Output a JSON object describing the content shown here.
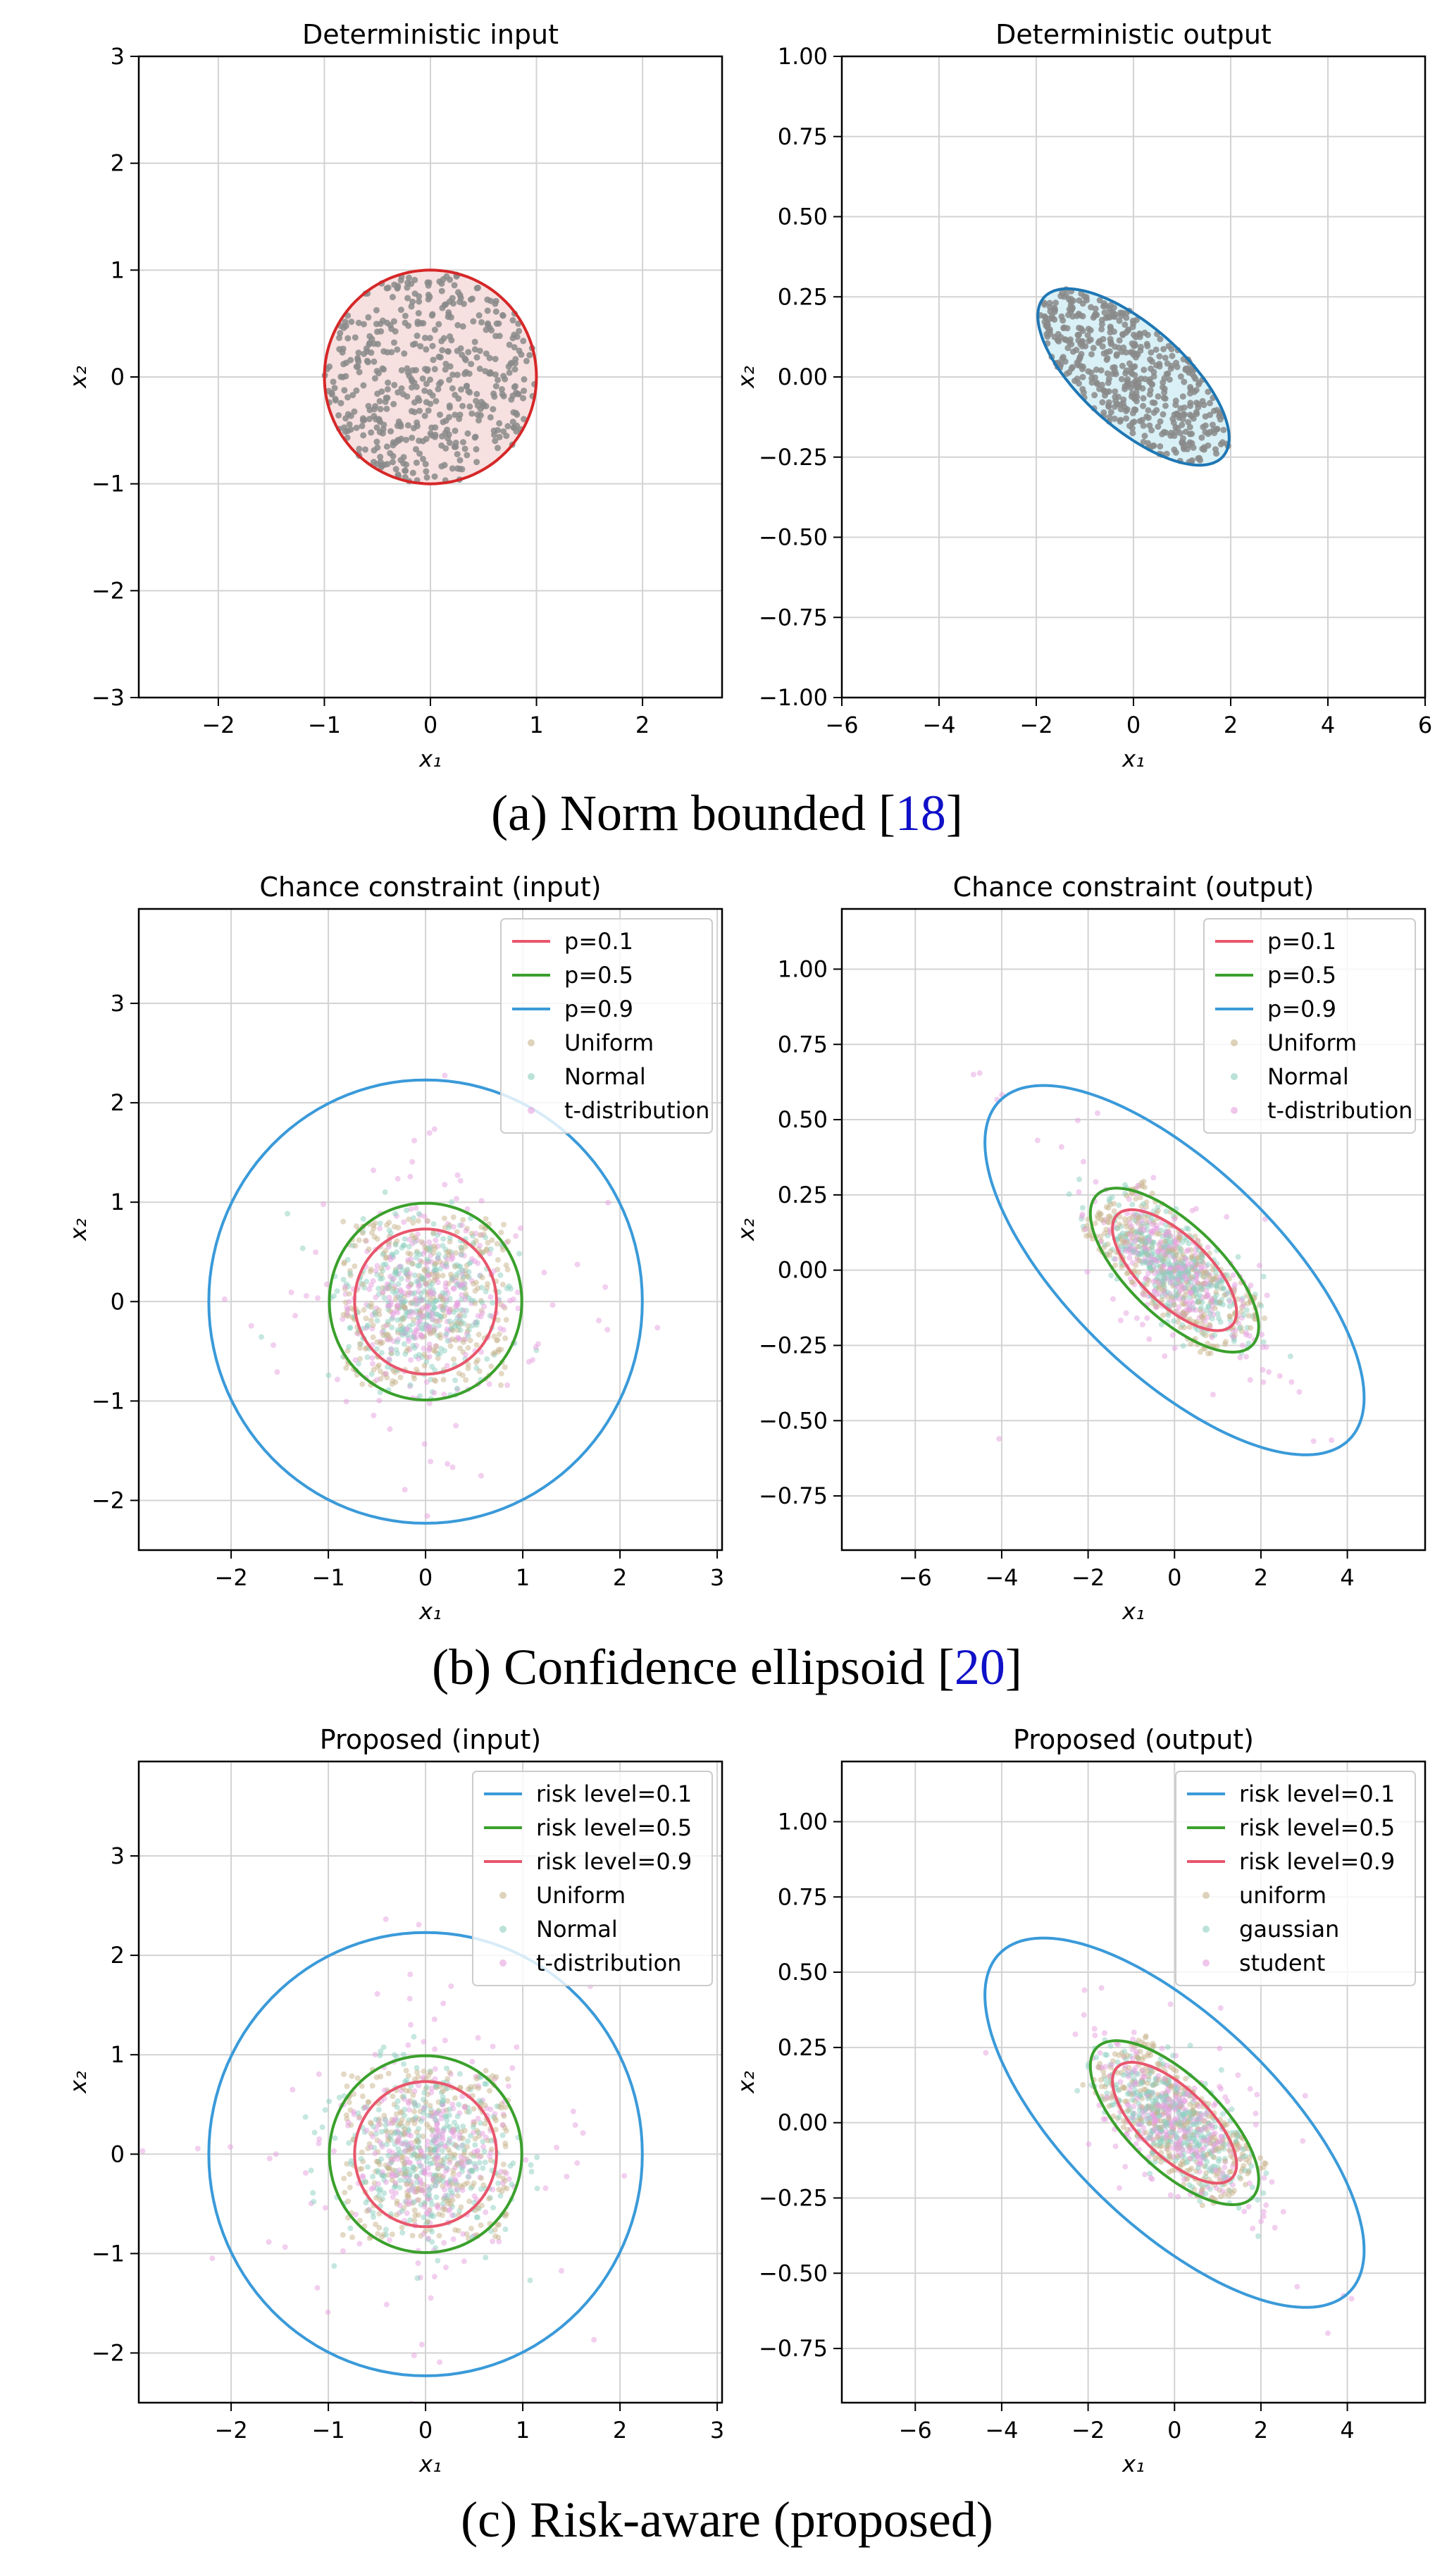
{
  "captions": [
    {
      "text": "(a) Norm bounded [",
      "ref": "18",
      "close": "]"
    },
    {
      "text": "(b) Confidence ellipsoid [",
      "ref": "20",
      "close": "]"
    },
    {
      "text": "(c) Risk-aware (proposed)",
      "ref": "",
      "close": ""
    }
  ],
  "colors": {
    "red": "#d62728",
    "blue_dark": "#1f77b4",
    "light_blue": "#3a9ad9",
    "green": "#3aa02c",
    "pink": "#e8566c",
    "fill_red": "#f7e0e0",
    "fill_blue": "#d9f1f6",
    "point_gray": "#8a8a8a",
    "uniform": "#c8b48c",
    "normal": "#8ccfc0",
    "tdist": "#e6a0e0",
    "grid": "#d3d3d3"
  },
  "chart_data": [
    {
      "type": "scatter",
      "title": "Deterministic input",
      "xlabel": "x₁",
      "ylabel": "x₂",
      "xlim": [
        -2.75,
        2.75
      ],
      "ylim": [
        -3,
        3
      ],
      "xticks": [
        -2,
        -1,
        0,
        1,
        2
      ],
      "xtick_labels": [
        "−2",
        "−1",
        "0",
        "1",
        "2"
      ],
      "yticks": [
        -3,
        -2,
        -1,
        0,
        1,
        2,
        3
      ],
      "ytick_labels": [
        "−3",
        "−2",
        "−1",
        "0",
        "1",
        "2",
        "3"
      ],
      "grid": true,
      "series": [],
      "regions": [
        {
          "shape": "circle",
          "center": [
            0,
            0
          ],
          "radius": 1,
          "stroke": "red",
          "fill": "fill_red"
        }
      ],
      "points": {
        "distribution": "uniform_in_region",
        "count": 500,
        "color": "point_gray"
      }
    },
    {
      "type": "scatter",
      "title": "Deterministic output",
      "xlabel": "x₁",
      "ylabel": "x₂",
      "xlim": [
        -6,
        6
      ],
      "ylim": [
        -1,
        1
      ],
      "xticks": [
        -6,
        -4,
        -2,
        0,
        2,
        4,
        6
      ],
      "xtick_labels": [
        "−6",
        "−4",
        "−2",
        "0",
        "2",
        "4",
        "6"
      ],
      "yticks": [
        -1,
        -0.75,
        -0.5,
        -0.25,
        0,
        0.25,
        0.5,
        0.75,
        1
      ],
      "ytick_labels": [
        "−1.00",
        "−0.75",
        "−0.50",
        "−0.25",
        "0.00",
        "0.25",
        "0.50",
        "0.75",
        "1.00"
      ],
      "grid": true,
      "series": [],
      "regions": [
        {
          "shape": "ellipse",
          "center": [
            0,
            0
          ],
          "a": [
            -1.75,
            0.26
          ],
          "b": [
            0.9,
            0.09
          ],
          "stroke": "blue_dark",
          "fill": "fill_blue"
        }
      ],
      "points": {
        "distribution": "uniform_in_region",
        "count": 500,
        "color": "point_gray"
      }
    },
    {
      "type": "scatter",
      "title": "Chance constraint (input)",
      "xlabel": "x₁",
      "ylabel": "x₂",
      "xlim": [
        -2.95,
        3.05
      ],
      "ylim": [
        -2.5,
        3.95
      ],
      "xticks": [
        -2,
        -1,
        0,
        1,
        2,
        3
      ],
      "xtick_labels": [
        "−2",
        "−1",
        "0",
        "1",
        "2",
        "3"
      ],
      "yticks": [
        -2,
        -1,
        0,
        1,
        2,
        3
      ],
      "ytick_labels": [
        "−2",
        "−1",
        "0",
        "1",
        "2",
        "3"
      ],
      "grid": true,
      "legend": "top-right",
      "series": [
        {
          "name": "p=0.1",
          "kind": "line",
          "color": "pink"
        },
        {
          "name": "p=0.5",
          "kind": "line",
          "color": "green"
        },
        {
          "name": "p=0.9",
          "kind": "line",
          "color": "light_blue"
        },
        {
          "name": "Uniform",
          "kind": "point",
          "color": "uniform"
        },
        {
          "name": "Normal",
          "kind": "point",
          "color": "normal"
        },
        {
          "name": "t-distribution",
          "kind": "point",
          "color": "tdist"
        }
      ],
      "regions": [
        {
          "shape": "circle",
          "center": [
            0,
            0
          ],
          "radius": 0.73,
          "stroke": "pink"
        },
        {
          "shape": "circle",
          "center": [
            0,
            0
          ],
          "radius": 0.99,
          "stroke": "green"
        },
        {
          "shape": "circle",
          "center": [
            0,
            0
          ],
          "radius": 2.23,
          "stroke": "light_blue"
        }
      ],
      "points": {
        "distribution": "three_clouds",
        "count_each": 350
      }
    },
    {
      "type": "scatter",
      "title": "Chance constraint (output)",
      "xlabel": "x₁",
      "ylabel": "x₂",
      "xlim": [
        -7.7,
        5.8
      ],
      "ylim": [
        -0.93,
        1.2
      ],
      "xticks": [
        -6,
        -4,
        -2,
        0,
        2,
        4
      ],
      "xtick_labels": [
        "−6",
        "−4",
        "−2",
        "0",
        "2",
        "4"
      ],
      "yticks": [
        -0.75,
        -0.5,
        -0.25,
        0,
        0.25,
        0.5,
        0.75,
        1
      ],
      "ytick_labels": [
        "−0.75",
        "−0.50",
        "−0.25",
        "0.00",
        "0.25",
        "0.50",
        "0.75",
        "1.00"
      ],
      "grid": true,
      "legend": "top-right",
      "series": [
        {
          "name": "p=0.1",
          "kind": "line",
          "color": "pink"
        },
        {
          "name": "p=0.5",
          "kind": "line",
          "color": "green"
        },
        {
          "name": "p=0.9",
          "kind": "line",
          "color": "light_blue"
        },
        {
          "name": "Uniform",
          "kind": "point",
          "color": "uniform"
        },
        {
          "name": "Normal",
          "kind": "point",
          "color": "normal"
        },
        {
          "name": "t-distribution",
          "kind": "point",
          "color": "tdist"
        }
      ],
      "regions": [
        {
          "shape": "ellipse",
          "center": [
            0,
            0
          ],
          "a": [
            -1.75,
            0.26
          ],
          "b": [
            0.9,
            0.09
          ],
          "scale": 0.73,
          "stroke": "pink"
        },
        {
          "shape": "ellipse",
          "center": [
            0,
            0
          ],
          "a": [
            -1.75,
            0.26
          ],
          "b": [
            0.9,
            0.09
          ],
          "scale": 0.99,
          "stroke": "green"
        },
        {
          "shape": "ellipse",
          "center": [
            0,
            0
          ],
          "a": [
            -1.75,
            0.26
          ],
          "b": [
            0.9,
            0.09
          ],
          "scale": 2.23,
          "stroke": "light_blue"
        }
      ],
      "points": {
        "distribution": "three_clouds",
        "count_each": 350
      }
    },
    {
      "type": "scatter",
      "title": "Proposed (input)",
      "xlabel": "x₁",
      "ylabel": "x₂",
      "xlim": [
        -2.95,
        3.05
      ],
      "ylim": [
        -2.5,
        3.95
      ],
      "xticks": [
        -2,
        -1,
        0,
        1,
        2,
        3
      ],
      "xtick_labels": [
        "−2",
        "−1",
        "0",
        "1",
        "2",
        "3"
      ],
      "yticks": [
        -2,
        -1,
        0,
        1,
        2,
        3
      ],
      "ytick_labels": [
        "−2",
        "−1",
        "0",
        "1",
        "2",
        "3"
      ],
      "grid": true,
      "legend": "top-right",
      "series": [
        {
          "name": "risk level=0.1",
          "kind": "line",
          "color": "light_blue"
        },
        {
          "name": "risk level=0.5",
          "kind": "line",
          "color": "green"
        },
        {
          "name": "risk level=0.9",
          "kind": "line",
          "color": "pink"
        },
        {
          "name": "Uniform",
          "kind": "point",
          "color": "uniform"
        },
        {
          "name": "Normal",
          "kind": "point",
          "color": "normal"
        },
        {
          "name": "t-distribution",
          "kind": "point",
          "color": "tdist"
        }
      ],
      "regions": [
        {
          "shape": "circle",
          "center": [
            0,
            0
          ],
          "radius": 0.73,
          "stroke": "pink"
        },
        {
          "shape": "circle",
          "center": [
            0,
            0
          ],
          "radius": 0.99,
          "stroke": "green"
        },
        {
          "shape": "circle",
          "center": [
            0,
            0
          ],
          "radius": 2.23,
          "stroke": "light_blue"
        }
      ],
      "points": {
        "distribution": "three_clouds",
        "count_each": 350
      }
    },
    {
      "type": "scatter",
      "title": "Proposed (output)",
      "xlabel": "x₁",
      "ylabel": "x₂",
      "xlim": [
        -7.7,
        5.8
      ],
      "ylim": [
        -0.93,
        1.2
      ],
      "xticks": [
        -6,
        -4,
        -2,
        0,
        2,
        4
      ],
      "xtick_labels": [
        "−6",
        "−4",
        "−2",
        "0",
        "2",
        "4"
      ],
      "yticks": [
        -0.75,
        -0.5,
        -0.25,
        0,
        0.25,
        0.5,
        0.75,
        1
      ],
      "ytick_labels": [
        "−0.75",
        "−0.50",
        "−0.25",
        "0.00",
        "0.25",
        "0.50",
        "0.75",
        "1.00"
      ],
      "grid": true,
      "legend": "top-right",
      "series": [
        {
          "name": "risk level=0.1",
          "kind": "line",
          "color": "light_blue"
        },
        {
          "name": "risk level=0.5",
          "kind": "line",
          "color": "green"
        },
        {
          "name": "risk level=0.9",
          "kind": "line",
          "color": "pink"
        },
        {
          "name": "uniform",
          "kind": "point",
          "color": "uniform"
        },
        {
          "name": "gaussian",
          "kind": "point",
          "color": "normal"
        },
        {
          "name": "student",
          "kind": "point",
          "color": "tdist"
        }
      ],
      "regions": [
        {
          "shape": "ellipse",
          "center": [
            0,
            0
          ],
          "a": [
            -1.75,
            0.26
          ],
          "b": [
            0.9,
            0.09
          ],
          "scale": 0.73,
          "stroke": "pink"
        },
        {
          "shape": "ellipse",
          "center": [
            0,
            0
          ],
          "a": [
            -1.75,
            0.26
          ],
          "b": [
            0.9,
            0.09
          ],
          "scale": 0.99,
          "stroke": "green"
        },
        {
          "shape": "ellipse",
          "center": [
            0,
            0
          ],
          "a": [
            -1.75,
            0.26
          ],
          "b": [
            0.9,
            0.09
          ],
          "scale": 2.23,
          "stroke": "light_blue"
        }
      ],
      "points": {
        "distribution": "three_clouds",
        "count_each": 350
      }
    }
  ]
}
